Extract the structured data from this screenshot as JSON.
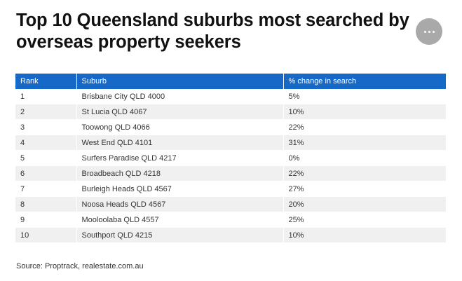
{
  "title": "Top 10 Queensland suburbs most searched by overseas property seekers",
  "menu_button": {
    "icon": "more-horizontal-icon",
    "color": "#a9a9a9"
  },
  "table": {
    "header_color": "#1669c7",
    "columns": [
      "Rank",
      "Suburb",
      "% change in search"
    ],
    "rows": [
      [
        "1",
        "Brisbane City QLD 4000",
        "5%"
      ],
      [
        "2",
        "St Lucia QLD 4067",
        "10%"
      ],
      [
        "3",
        "Toowong QLD 4066",
        "22%"
      ],
      [
        "4",
        "West End QLD 4101",
        "31%"
      ],
      [
        "5",
        "Surfers Paradise QLD 4217",
        "0%"
      ],
      [
        "6",
        "Broadbeach QLD 4218",
        "22%"
      ],
      [
        "7",
        "Burleigh Heads QLD 4567",
        "27%"
      ],
      [
        "8",
        "Noosa Heads QLD 4567",
        "20%"
      ],
      [
        "9",
        "Mooloolaba QLD 4557",
        "25%"
      ],
      [
        "10",
        "Southport QLD 4215",
        "10%"
      ]
    ]
  },
  "source": "Source: Proptrack, realestate.com.au"
}
